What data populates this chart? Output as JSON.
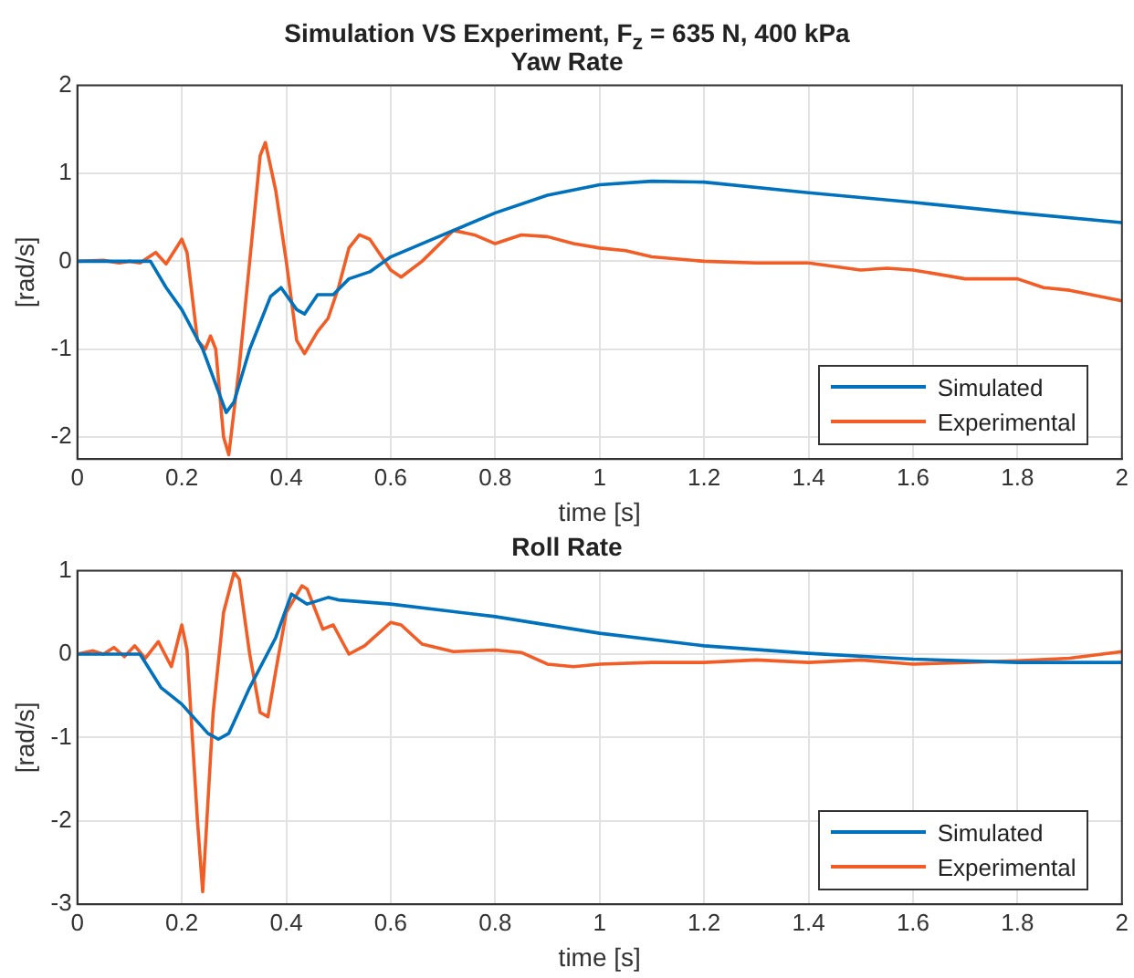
{
  "chart_data": [
    {
      "type": "line",
      "title": "Simulation VS Experiment, F$_{z}$ = 635 N, 400 kPa",
      "subtitle": "Yaw Rate",
      "xlabel": "time [s]",
      "ylabel": "[rad/s]",
      "xlim": [
        0,
        2
      ],
      "xticks": [
        0,
        0.2,
        0.4,
        0.6,
        0.8,
        1,
        1.2,
        1.4,
        1.6,
        1.8,
        2
      ],
      "ylim": [
        -2.25,
        2
      ],
      "yticks": [
        -2,
        -1,
        0,
        1,
        2
      ],
      "grid": true,
      "legend": "bottom right",
      "marker": "none",
      "line_style": "solid",
      "series": [
        {
          "name": "Simulated",
          "color": "#0072bd",
          "x": [
            0,
            0.14,
            0.17,
            0.2,
            0.24,
            0.285,
            0.3,
            0.33,
            0.37,
            0.39,
            0.42,
            0.435,
            0.46,
            0.49,
            0.52,
            0.56,
            0.6,
            0.7,
            0.8,
            0.9,
            1.0,
            1.1,
            1.2,
            1.4,
            1.6,
            1.8,
            2.0
          ],
          "values": [
            0,
            0,
            -0.3,
            -0.55,
            -1.0,
            -1.72,
            -1.6,
            -1.0,
            -0.4,
            -0.3,
            -0.55,
            -0.6,
            -0.38,
            -0.38,
            -0.2,
            -0.12,
            0.05,
            0.3,
            0.55,
            0.75,
            0.87,
            0.91,
            0.9,
            0.78,
            0.67,
            0.55,
            0.44
          ]
        },
        {
          "name": "Experimental",
          "color": "#f25c25",
          "x": [
            0,
            0.05,
            0.08,
            0.1,
            0.12,
            0.15,
            0.17,
            0.2,
            0.21,
            0.23,
            0.245,
            0.255,
            0.265,
            0.28,
            0.29,
            0.31,
            0.33,
            0.35,
            0.36,
            0.38,
            0.4,
            0.42,
            0.435,
            0.46,
            0.48,
            0.5,
            0.52,
            0.54,
            0.56,
            0.6,
            0.62,
            0.66,
            0.72,
            0.76,
            0.8,
            0.85,
            0.9,
            0.95,
            1.0,
            1.05,
            1.1,
            1.2,
            1.3,
            1.4,
            1.5,
            1.55,
            1.6,
            1.7,
            1.8,
            1.85,
            1.9,
            2.0
          ],
          "values": [
            0,
            0.01,
            -0.02,
            0,
            -0.02,
            0.1,
            -0.03,
            0.25,
            0.1,
            -0.9,
            -1.0,
            -0.85,
            -1.0,
            -2.0,
            -2.2,
            -1.2,
            0,
            1.2,
            1.35,
            0.8,
            0,
            -0.9,
            -1.05,
            -0.8,
            -0.65,
            -0.3,
            0.15,
            0.3,
            0.25,
            -0.1,
            -0.18,
            0,
            0.35,
            0.3,
            0.2,
            0.3,
            0.28,
            0.2,
            0.15,
            0.12,
            0.05,
            0.0,
            -0.02,
            -0.02,
            -0.1,
            -0.08,
            -0.1,
            -0.2,
            -0.2,
            -0.3,
            -0.33,
            -0.45
          ]
        }
      ]
    },
    {
      "type": "line",
      "title": "Roll Rate",
      "xlabel": "time [s]",
      "ylabel": "[rad/s]",
      "xlim": [
        0,
        2
      ],
      "xticks": [
        0,
        0.2,
        0.4,
        0.6,
        0.8,
        1,
        1.2,
        1.4,
        1.6,
        1.8,
        2
      ],
      "ylim": [
        -3,
        1
      ],
      "yticks": [
        -3,
        -2,
        -1,
        0,
        1
      ],
      "grid": true,
      "legend": "bottom right",
      "marker": "none",
      "line_style": "solid",
      "series": [
        {
          "name": "Simulated",
          "color": "#0072bd",
          "x": [
            0,
            0.12,
            0.16,
            0.2,
            0.25,
            0.27,
            0.29,
            0.33,
            0.38,
            0.41,
            0.44,
            0.48,
            0.5,
            0.6,
            0.8,
            1.0,
            1.2,
            1.4,
            1.6,
            1.8,
            2.0
          ],
          "values": [
            0,
            0,
            -0.4,
            -0.6,
            -0.95,
            -1.02,
            -0.95,
            -0.4,
            0.2,
            0.72,
            0.6,
            0.68,
            0.65,
            0.6,
            0.45,
            0.25,
            0.1,
            0.01,
            -0.06,
            -0.1,
            -0.1
          ]
        },
        {
          "name": "Experimental",
          "color": "#f25c25",
          "x": [
            0,
            0.03,
            0.05,
            0.07,
            0.09,
            0.11,
            0.13,
            0.155,
            0.18,
            0.2,
            0.21,
            0.23,
            0.24,
            0.26,
            0.28,
            0.3,
            0.31,
            0.33,
            0.35,
            0.365,
            0.38,
            0.4,
            0.43,
            0.44,
            0.47,
            0.49,
            0.52,
            0.55,
            0.6,
            0.62,
            0.66,
            0.72,
            0.8,
            0.85,
            0.9,
            0.95,
            1.0,
            1.1,
            1.2,
            1.3,
            1.4,
            1.5,
            1.6,
            1.7,
            1.8,
            1.9,
            2.0
          ],
          "values": [
            0,
            0.04,
            0,
            0.08,
            -0.03,
            0.1,
            -0.05,
            0.15,
            -0.15,
            0.35,
            0.05,
            -2.0,
            -2.85,
            -0.7,
            0.5,
            0.98,
            0.9,
            0,
            -0.7,
            -0.75,
            -0.2,
            0.5,
            0.82,
            0.78,
            0.3,
            0.35,
            0.0,
            0.1,
            0.38,
            0.35,
            0.12,
            0.03,
            0.05,
            0.02,
            -0.12,
            -0.15,
            -0.12,
            -0.1,
            -0.1,
            -0.07,
            -0.1,
            -0.07,
            -0.12,
            -0.1,
            -0.08,
            -0.05,
            0.03
          ]
        }
      ]
    }
  ]
}
